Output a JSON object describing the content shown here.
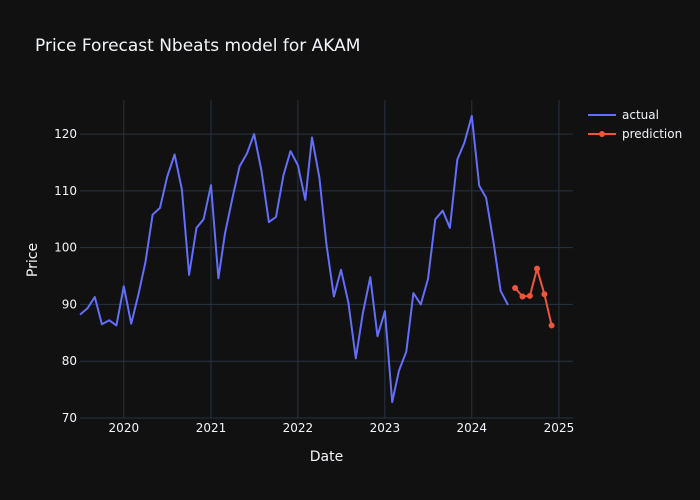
{
  "chart_data": {
    "type": "line",
    "title": "Price Forecast Nbeats model for AKAM",
    "xlabel": "Date",
    "ylabel": "Price",
    "x_axis_type": "date",
    "xlim": [
      "2019-07-01",
      "2025-03-01"
    ],
    "ylim": [
      70,
      126
    ],
    "x_ticks": [
      {
        "date": "2020-01-01",
        "label": "2020"
      },
      {
        "date": "2021-01-01",
        "label": "2021"
      },
      {
        "date": "2022-01-01",
        "label": "2022"
      },
      {
        "date": "2023-01-01",
        "label": "2023"
      },
      {
        "date": "2024-01-01",
        "label": "2024"
      },
      {
        "date": "2025-01-01",
        "label": "2025"
      }
    ],
    "y_ticks": [
      70,
      80,
      90,
      100,
      110,
      120
    ],
    "grid": true,
    "legend_position": "top-right",
    "series": [
      {
        "name": "actual",
        "color": "#636efa",
        "mode": "lines",
        "points": [
          [
            "2019-07-01",
            88.2
          ],
          [
            "2019-08-01",
            89.3
          ],
          [
            "2019-09-01",
            91.3
          ],
          [
            "2019-10-01",
            86.5
          ],
          [
            "2019-11-01",
            87.2
          ],
          [
            "2019-12-01",
            86.3
          ],
          [
            "2020-01-01",
            93.2
          ],
          [
            "2020-02-01",
            86.6
          ],
          [
            "2020-03-01",
            91.5
          ],
          [
            "2020-04-01",
            97.5
          ],
          [
            "2020-05-01",
            105.8
          ],
          [
            "2020-06-01",
            107.0
          ],
          [
            "2020-07-01",
            112.5
          ],
          [
            "2020-08-01",
            116.4
          ],
          [
            "2020-09-01",
            110.2
          ],
          [
            "2020-10-01",
            95.2
          ],
          [
            "2020-11-01",
            103.5
          ],
          [
            "2020-12-01",
            105.0
          ],
          [
            "2021-01-01",
            111.0
          ],
          [
            "2021-02-01",
            94.6
          ],
          [
            "2021-03-01",
            102.5
          ],
          [
            "2021-04-01",
            108.7
          ],
          [
            "2021-05-01",
            114.3
          ],
          [
            "2021-06-01",
            116.6
          ],
          [
            "2021-07-01",
            120.0
          ],
          [
            "2021-08-01",
            113.5
          ],
          [
            "2021-09-01",
            104.5
          ],
          [
            "2021-10-01",
            105.4
          ],
          [
            "2021-11-01",
            112.7
          ],
          [
            "2021-12-01",
            117.0
          ],
          [
            "2022-01-01",
            114.5
          ],
          [
            "2022-02-01",
            108.4
          ],
          [
            "2022-03-01",
            119.4
          ],
          [
            "2022-04-01",
            112.3
          ],
          [
            "2022-05-01",
            100.5
          ],
          [
            "2022-06-01",
            91.4
          ],
          [
            "2022-07-01",
            96.1
          ],
          [
            "2022-08-01",
            90.3
          ],
          [
            "2022-09-01",
            80.5
          ],
          [
            "2022-10-01",
            88.5
          ],
          [
            "2022-11-01",
            94.8
          ],
          [
            "2022-12-01",
            84.4
          ],
          [
            "2023-01-01",
            88.8
          ],
          [
            "2023-02-01",
            72.8
          ],
          [
            "2023-03-01",
            78.3
          ],
          [
            "2023-04-01",
            81.7
          ],
          [
            "2023-05-01",
            92.0
          ],
          [
            "2023-06-01",
            90.0
          ],
          [
            "2023-07-01",
            94.5
          ],
          [
            "2023-08-01",
            105.0
          ],
          [
            "2023-09-01",
            106.5
          ],
          [
            "2023-10-01",
            103.5
          ],
          [
            "2023-11-01",
            115.5
          ],
          [
            "2023-12-01",
            118.5
          ],
          [
            "2024-01-01",
            123.2
          ],
          [
            "2024-02-01",
            110.9
          ],
          [
            "2024-03-01",
            108.8
          ],
          [
            "2024-04-01",
            101.0
          ],
          [
            "2024-05-01",
            92.4
          ],
          [
            "2024-06-01",
            89.9
          ]
        ]
      },
      {
        "name": "prediction",
        "color": "#ef553b",
        "mode": "lines+markers",
        "points": [
          [
            "2024-07-01",
            92.9
          ],
          [
            "2024-08-01",
            91.4
          ],
          [
            "2024-09-01",
            91.5
          ],
          [
            "2024-10-01",
            96.3
          ],
          [
            "2024-11-01",
            91.8
          ],
          [
            "2024-12-01",
            86.3
          ]
        ]
      }
    ]
  }
}
